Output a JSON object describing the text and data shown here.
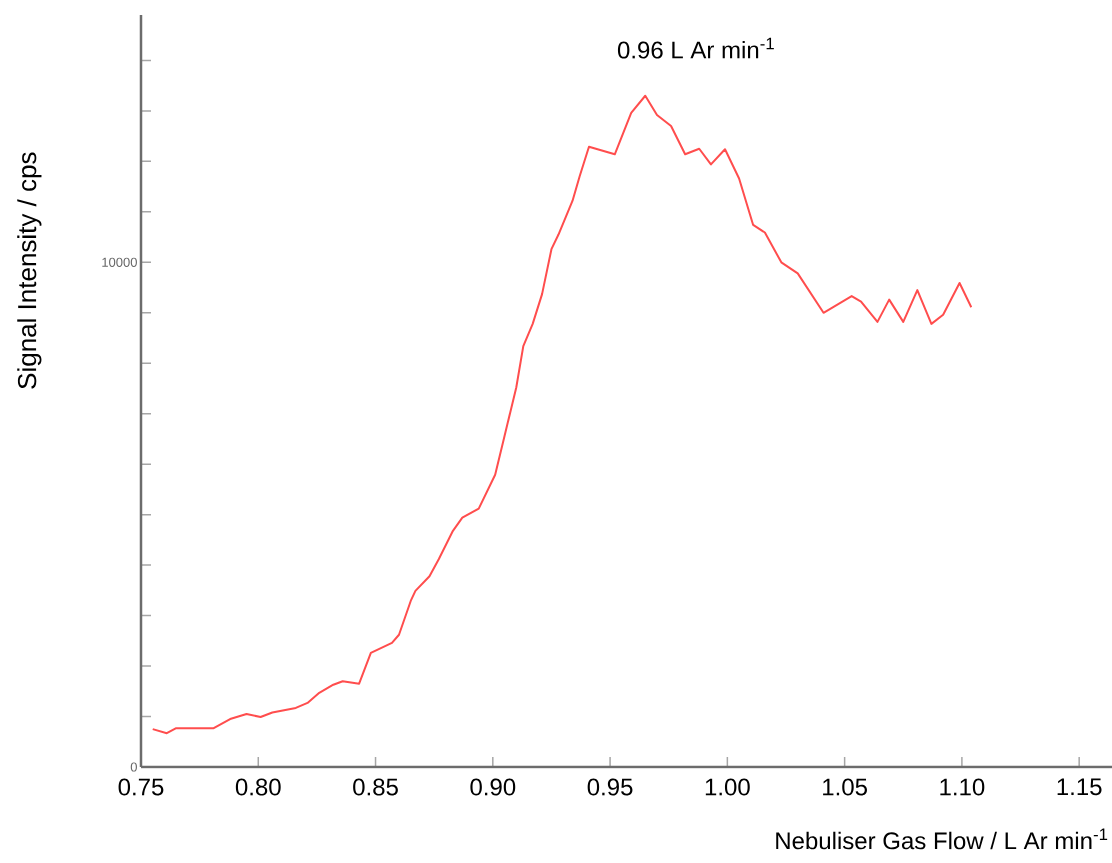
{
  "chart_data": {
    "type": "line",
    "xlabel": "Nebuliser Gas Flow / L Ar min$^{-1}$",
    "ylabel": "Signal Intensity / cps",
    "annotations": [
      "0.96 L Ar min$^{-1}$"
    ],
    "xlim": [
      0.75,
      1.164
    ],
    "ylim": [
      0,
      14900
    ],
    "xticks": [
      {
        "value": 0.75,
        "label": "0.75"
      },
      {
        "value": 0.8,
        "label": "0.80"
      },
      {
        "value": 0.85,
        "label": "0.85"
      },
      {
        "value": 0.9,
        "label": "0.90"
      },
      {
        "value": 0.95,
        "label": "0.95"
      },
      {
        "value": 1.0,
        "label": "1.00"
      },
      {
        "value": 1.05,
        "label": "1.05"
      },
      {
        "value": 1.1,
        "label": "1.10"
      },
      {
        "value": 1.15,
        "label": "1.15"
      }
    ],
    "yticks": [
      0,
      {
        "value": 1000,
        "label": null
      },
      {
        "value": 2000,
        "label": null
      },
      {
        "value": 3000,
        "label": null
      },
      {
        "value": 4000,
        "label": null
      },
      {
        "value": 5000,
        "label": null
      },
      {
        "value": 6000,
        "label": null
      },
      {
        "value": 7000,
        "label": null
      },
      {
        "value": 8000,
        "label": null
      },
      {
        "value": 9000,
        "label": null
      },
      10000,
      {
        "value": 11000,
        "label": null
      },
      {
        "value": 12000,
        "label": null
      },
      {
        "value": 13000,
        "label": null
      },
      {
        "value": 14000,
        "label": null
      }
    ],
    "series": [
      {
        "color": "#ff4d4d",
        "x": [
          0.755,
          0.761,
          0.765,
          0.781,
          0.788,
          0.795,
          0.801,
          0.806,
          0.816,
          0.821,
          0.826,
          0.832,
          0.836,
          0.843,
          0.848,
          0.857,
          0.86,
          0.865,
          0.867,
          0.873,
          0.877,
          0.883,
          0.887,
          0.894,
          0.901,
          0.905,
          0.91,
          0.913,
          0.917,
          0.921,
          0.925,
          0.928,
          0.934,
          0.937,
          0.941,
          0.952,
          0.959,
          0.965,
          0.97,
          0.976,
          0.982,
          0.988,
          0.993,
          0.999,
          1.005,
          1.011,
          1.016,
          1.023,
          1.03,
          1.041,
          1.053,
          1.057,
          1.064,
          1.069,
          1.075,
          1.081,
          1.087,
          1.092,
          1.099,
          1.104
        ],
        "values": [
          750,
          670,
          770,
          770,
          950,
          1050,
          990,
          1080,
          1170,
          1270,
          1470,
          1630,
          1700,
          1650,
          2260,
          2460,
          2620,
          3290,
          3490,
          3780,
          4120,
          4680,
          4940,
          5120,
          5790,
          6560,
          7520,
          8340,
          8780,
          9370,
          10260,
          10550,
          11220,
          11700,
          12290,
          12140,
          12960,
          13300,
          12920,
          12700,
          12140,
          12250,
          11940,
          12240,
          11660,
          10740,
          10590,
          10000,
          9780,
          9000,
          9330,
          9220,
          8820,
          9260,
          8820,
          9450,
          8780,
          8960,
          9590,
          9110
        ]
      }
    ]
  }
}
